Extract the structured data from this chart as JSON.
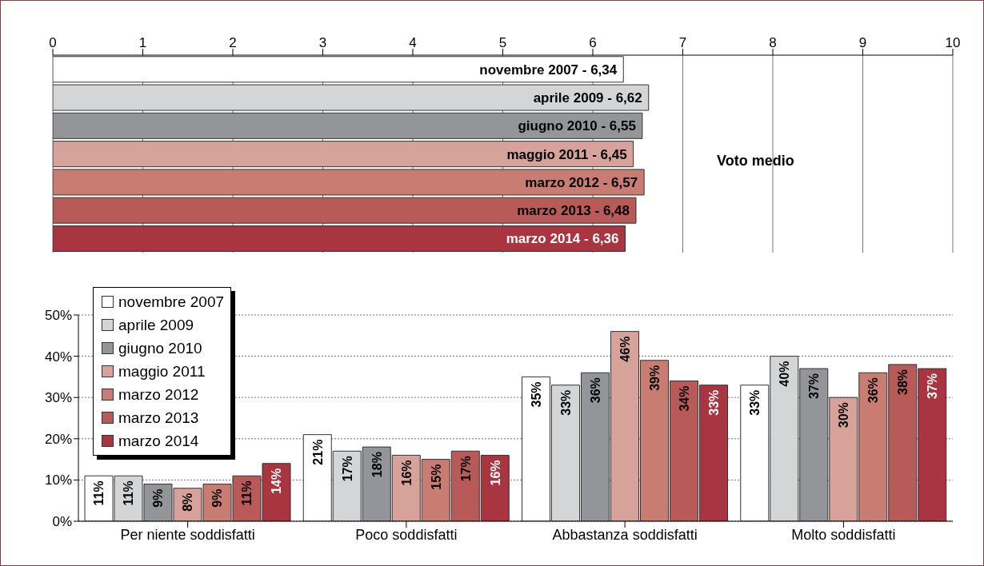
{
  "chart_data": [
    {
      "type": "bar",
      "orientation": "horizontal",
      "categories": [
        null,
        null,
        null,
        null,
        null,
        null,
        null
      ],
      "values": [
        6.34,
        6.62,
        6.55,
        6.45,
        6.57,
        6.48,
        6.36
      ],
      "value_labels": [
        "novembre 2007 - 6,34",
        "aprile 2009 - 6,62",
        "giugno 2010 - 6,55",
        "maggio 2011 - 6,45",
        "marzo 2012 - 6,57",
        "marzo 2013 - 6,48",
        "marzo 2014 - 6,36"
      ],
      "colors": [
        "#ffffff",
        "#d4d5d7",
        "#939598",
        "#d6a29a",
        "#c87c72",
        "#b85a58",
        "#a83540"
      ],
      "xlim": [
        0,
        10
      ],
      "xticks": [
        0,
        1,
        2,
        3,
        4,
        5,
        6,
        7,
        8,
        9,
        10
      ],
      "grid": "x",
      "tick_labels": "x",
      "annotations": [
        "Voto medio"
      ]
    },
    {
      "type": "bar",
      "categories": [
        "Per niente soddisfatti",
        "Poco soddisfatti",
        "Abbastanza soddisfatti",
        "Molto soddisfatti"
      ],
      "series": [
        {
          "name": "novembre 2007",
          "color": "#ffffff",
          "values": [
            11,
            21,
            35,
            33
          ],
          "value_labels": [
            "11%",
            "21%",
            "35%",
            "33%"
          ]
        },
        {
          "name": "aprile 2009",
          "color": "#d4d5d7",
          "values": [
            11,
            17,
            33,
            40
          ],
          "value_labels": [
            "11%",
            "17%",
            "33%",
            "40%"
          ]
        },
        {
          "name": "giugno 2010",
          "color": "#939598",
          "values": [
            9,
            18,
            36,
            37
          ],
          "value_labels": [
            "9%",
            "18%",
            "36%",
            "37%"
          ]
        },
        {
          "name": "maggio 2011",
          "color": "#d6a29a",
          "values": [
            8,
            16,
            46,
            30
          ],
          "value_labels": [
            "8%",
            "16%",
            "46%",
            "30%"
          ]
        },
        {
          "name": "marzo 2012",
          "color": "#c87c72",
          "values": [
            9,
            15,
            39,
            36
          ],
          "value_labels": [
            "9%",
            "15%",
            "39%",
            "36%"
          ]
        },
        {
          "name": "marzo 2013",
          "color": "#b85a58",
          "values": [
            11,
            17,
            34,
            38
          ],
          "value_labels": [
            "11%",
            "17%",
            "34%",
            "38%"
          ]
        },
        {
          "name": "marzo 2014",
          "color": "#a83540",
          "values": [
            14,
            16,
            33,
            37
          ],
          "value_labels": [
            "14%",
            "16%",
            "33%",
            "37%"
          ]
        }
      ],
      "ylim": [
        0,
        50
      ],
      "yticks": [
        {
          "value": 0,
          "label": "0%"
        },
        {
          "value": 10,
          "label": "10%"
        },
        {
          "value": 20,
          "label": "20%"
        },
        {
          "value": 30,
          "label": "30%"
        },
        {
          "value": 40,
          "label": "40%"
        },
        {
          "value": 50,
          "label": "50%"
        }
      ],
      "grid": "y",
      "legend": "top left"
    }
  ]
}
